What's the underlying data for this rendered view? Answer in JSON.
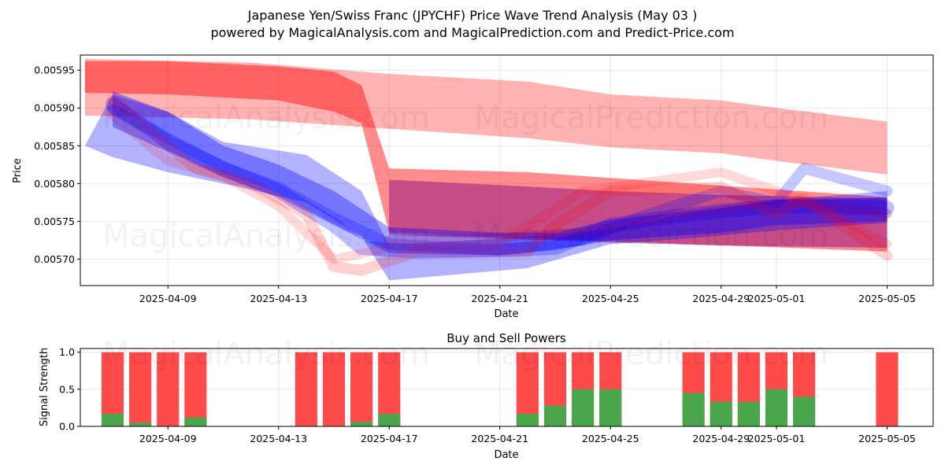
{
  "figure": {
    "title": "Japanese Yen/Swiss Franc (JPYCHF) Price Wave Trend Analysis (May 03 )",
    "subtitle": "powered by MagicalAnalysis.com and MagicalPrediction.com and Predict-Price.com",
    "watermarks": [
      "MagicalAnalysis.com",
      "MagicalPrediction.com"
    ]
  },
  "chart_data": [
    {
      "type": "area",
      "name": "price-wave",
      "xlabel": "Date",
      "ylabel": "Price",
      "x_ticks": [
        "2025-04-09",
        "2025-04-13",
        "2025-04-17",
        "2025-04-21",
        "2025-04-25",
        "2025-04-29",
        "2025-05-01",
        "2025-05-05"
      ],
      "y_ticks": [
        "0.00570",
        "0.00575",
        "0.00580",
        "0.00585",
        "0.00590",
        "0.00595"
      ],
      "xlim": [
        "2025-04-05T20:00",
        "2025-05-06T16:00"
      ],
      "ylim": [
        0.005665,
        0.00597
      ],
      "grid": true,
      "colors": {
        "red": "#ff0000",
        "blue": "#0000ff",
        "purple": "#800080"
      },
      "bands": [
        {
          "color": "red",
          "opacity": 0.3,
          "upper": [
            [
              "2025-04-06",
              0.005965
            ],
            [
              "2025-04-12",
              0.00596
            ],
            [
              "2025-04-17",
              0.005945
            ],
            [
              "2025-04-22",
              0.005935
            ],
            [
              "2025-04-25",
              0.005918
            ],
            [
              "2025-04-29",
              0.00591
            ],
            [
              "2025-05-01",
              0.0059
            ],
            [
              "2025-05-05",
              0.005882
            ]
          ],
          "lower": [
            [
              "2025-04-06",
              0.00589
            ],
            [
              "2025-04-12",
              0.005885
            ],
            [
              "2025-04-16",
              0.005875
            ],
            [
              "2025-04-22",
              0.00586
            ],
            [
              "2025-04-25",
              0.005848
            ],
            [
              "2025-04-29",
              0.00584
            ],
            [
              "2025-05-01",
              0.00583
            ],
            [
              "2025-05-05",
              0.005812
            ]
          ]
        },
        {
          "color": "red",
          "opacity": 0.45,
          "upper": [
            [
              "2025-04-06",
              0.005962
            ],
            [
              "2025-04-09",
              0.005962
            ],
            [
              "2025-04-13",
              0.005955
            ],
            [
              "2025-04-15",
              0.005948
            ],
            [
              "2025-04-16",
              0.00593
            ],
            [
              "2025-04-17",
              0.00582
            ],
            [
              "2025-04-22",
              0.005815
            ],
            [
              "2025-05-05",
              0.005782
            ]
          ],
          "lower": [
            [
              "2025-04-06",
              0.00592
            ],
            [
              "2025-04-09",
              0.005918
            ],
            [
              "2025-04-13",
              0.00591
            ],
            [
              "2025-04-15",
              0.005895
            ],
            [
              "2025-04-16",
              0.00588
            ],
            [
              "2025-04-17",
              0.005735
            ],
            [
              "2025-04-22",
              0.005728
            ],
            [
              "2025-05-05",
              0.00571
            ]
          ]
        },
        {
          "color": "purple",
          "opacity": 0.45,
          "upper": [
            [
              "2025-04-17",
              0.005805
            ],
            [
              "2025-04-21",
              0.005798
            ],
            [
              "2025-04-25",
              0.00579
            ],
            [
              "2025-04-29",
              0.005785
            ],
            [
              "2025-05-05",
              0.00578
            ]
          ],
          "lower": [
            [
              "2025-04-17",
              0.005732
            ],
            [
              "2025-04-21",
              0.005727
            ],
            [
              "2025-04-25",
              0.005722
            ],
            [
              "2025-04-29",
              0.005718
            ],
            [
              "2025-05-05",
              0.005715
            ]
          ]
        },
        {
          "color": "blue",
          "opacity": 0.3,
          "upper": [
            [
              "2025-04-06",
              0.00585
            ],
            [
              "2025-04-07",
              0.005918
            ],
            [
              "2025-04-09",
              0.005895
            ],
            [
              "2025-04-11",
              0.005855
            ],
            [
              "2025-04-14",
              0.005838
            ],
            [
              "2025-04-16",
              0.00579
            ],
            [
              "2025-04-17",
              0.005718
            ],
            [
              "2025-04-22",
              0.00573
            ],
            [
              "2025-04-25",
              0.00574
            ],
            [
              "2025-04-28",
              0.005762
            ],
            [
              "2025-05-01",
              0.005778
            ],
            [
              "2025-05-05",
              0.00579
            ]
          ],
          "lower": [
            [
              "2025-04-06",
              0.00585
            ],
            [
              "2025-04-07",
              0.005835
            ],
            [
              "2025-04-09",
              0.005815
            ],
            [
              "2025-04-11",
              0.0058
            ],
            [
              "2025-04-14",
              0.005775
            ],
            [
              "2025-04-16",
              0.00573
            ],
            [
              "2025-04-17",
              0.005672
            ],
            [
              "2025-04-22",
              0.005688
            ],
            [
              "2025-04-25",
              0.00572
            ],
            [
              "2025-04-28",
              0.005728
            ],
            [
              "2025-05-01",
              0.005738
            ],
            [
              "2025-05-05",
              0.005748
            ]
          ]
        },
        {
          "color": "blue",
          "opacity": 0.35,
          "upper": [
            [
              "2025-04-07",
              0.005922
            ],
            [
              "2025-04-09",
              0.005895
            ],
            [
              "2025-04-11",
              0.00585
            ],
            [
              "2025-04-13",
              0.005825
            ],
            [
              "2025-04-15",
              0.00579
            ],
            [
              "2025-04-17",
              0.005742
            ],
            [
              "2025-04-21",
              0.005735
            ],
            [
              "2025-04-23",
              0.005735
            ],
            [
              "2025-04-25",
              0.005752
            ],
            [
              "2025-04-29",
              0.005768
            ],
            [
              "2025-05-01",
              0.005778
            ],
            [
              "2025-05-05",
              0.005782
            ]
          ],
          "lower": [
            [
              "2025-04-07",
              0.005875
            ],
            [
              "2025-04-09",
              0.005842
            ],
            [
              "2025-04-11",
              0.005808
            ],
            [
              "2025-04-13",
              0.005782
            ],
            [
              "2025-04-15",
              0.005745
            ],
            [
              "2025-04-17",
              0.005708
            ],
            [
              "2025-04-21",
              0.005705
            ],
            [
              "2025-04-23",
              0.005712
            ],
            [
              "2025-04-25",
              0.005725
            ],
            [
              "2025-04-29",
              0.005735
            ],
            [
              "2025-05-01",
              0.005745
            ],
            [
              "2025-05-05",
              0.00575
            ]
          ]
        }
      ],
      "lines": [
        {
          "color": "blue",
          "opacity": 0.25,
          "width": 18,
          "points": [
            [
              "2025-04-07",
              0.005905
            ],
            [
              "2025-04-09",
              0.005855
            ],
            [
              "2025-04-11",
              0.00582
            ],
            [
              "2025-04-13",
              0.00579
            ],
            [
              "2025-04-15",
              0.005745
            ],
            [
              "2025-04-16",
              0.005715
            ],
            [
              "2025-04-18",
              0.00571
            ],
            [
              "2025-04-21",
              0.005712
            ],
            [
              "2025-04-23",
              0.005715
            ],
            [
              "2025-04-25",
              0.005745
            ],
            [
              "2025-04-28",
              0.00576
            ],
            [
              "2025-05-01",
              0.00577
            ],
            [
              "2025-05-05",
              0.005768
            ]
          ]
        },
        {
          "color": "blue",
          "opacity": 0.22,
          "width": 14,
          "points": [
            [
              "2025-04-07",
              0.005898
            ],
            [
              "2025-04-09",
              0.00586
            ],
            [
              "2025-04-11",
              0.005822
            ],
            [
              "2025-04-13",
              0.005795
            ],
            [
              "2025-04-15",
              0.005755
            ],
            [
              "2025-04-17",
              0.00572
            ],
            [
              "2025-04-21",
              0.005712
            ],
            [
              "2025-04-24",
              0.005725
            ],
            [
              "2025-04-26",
              0.005755
            ],
            [
              "2025-04-29",
              0.00579
            ],
            [
              "2025-05-01",
              0.005775
            ],
            [
              "2025-05-02",
              0.00582
            ],
            [
              "2025-05-05",
              0.00579
            ]
          ]
        },
        {
          "color": "red",
          "opacity": 0.18,
          "width": 14,
          "points": [
            [
              "2025-04-07",
              0.00591
            ],
            [
              "2025-04-09",
              0.00585
            ],
            [
              "2025-04-10",
              0.00582
            ],
            [
              "2025-04-12",
              0.0058
            ],
            [
              "2025-04-14",
              0.00576
            ],
            [
              "2025-04-15",
              0.00569
            ],
            [
              "2025-04-16",
              0.005685
            ],
            [
              "2025-04-18",
              0.00571
            ],
            [
              "2025-04-22",
              0.00571
            ],
            [
              "2025-04-23",
              0.005745
            ],
            [
              "2025-04-25",
              0.00579
            ],
            [
              "2025-04-29",
              0.005795
            ],
            [
              "2025-05-01",
              0.00576
            ],
            [
              "2025-05-02",
              0.00578
            ],
            [
              "2025-05-05",
              0.005705
            ]
          ]
        },
        {
          "color": "red",
          "opacity": 0.15,
          "width": 12,
          "points": [
            [
              "2025-04-07",
              0.00589
            ],
            [
              "2025-04-09",
              0.00583
            ],
            [
              "2025-04-11",
              0.00581
            ],
            [
              "2025-04-13",
              0.00577
            ],
            [
              "2025-04-15",
              0.0057
            ],
            [
              "2025-04-17",
              0.005715
            ],
            [
              "2025-04-21",
              0.00572
            ],
            [
              "2025-04-24",
              0.00579
            ],
            [
              "2025-04-27",
              0.005805
            ],
            [
              "2025-04-29",
              0.005815
            ],
            [
              "2025-05-01",
              0.00579
            ],
            [
              "2025-05-03",
              0.00576
            ],
            [
              "2025-05-05",
              0.00572
            ]
          ]
        },
        {
          "color": "purple",
          "opacity": 0.28,
          "width": 12,
          "points": [
            [
              "2025-04-17",
              0.005725
            ],
            [
              "2025-04-21",
              0.005728
            ],
            [
              "2025-04-24",
              0.005735
            ],
            [
              "2025-04-27",
              0.005755
            ],
            [
              "2025-04-30",
              0.00577
            ],
            [
              "2025-05-02",
              0.005775
            ],
            [
              "2025-05-05",
              0.00576
            ]
          ]
        }
      ]
    },
    {
      "type": "bar",
      "name": "buy-sell-powers",
      "title": "Buy and Sell Powers",
      "xlabel": "Date",
      "ylabel": "Signal Strength",
      "x_ticks": [
        "2025-04-09",
        "2025-04-13",
        "2025-04-17",
        "2025-04-21",
        "2025-04-25",
        "2025-04-29",
        "2025-05-01",
        "2025-05-05"
      ],
      "y_ticks": [
        "0.0",
        "0.5",
        "1.0"
      ],
      "ylim": [
        0,
        1.05
      ],
      "grid": true,
      "colors": {
        "buy": "#4aa64a",
        "sell": "#ff4a4a"
      },
      "categories": [
        "2025-04-07",
        "2025-04-08",
        "2025-04-09",
        "2025-04-10",
        "2025-04-14",
        "2025-04-15",
        "2025-04-16",
        "2025-04-17",
        "2025-04-22",
        "2025-04-23",
        "2025-04-24",
        "2025-04-25",
        "2025-04-28",
        "2025-04-29",
        "2025-04-30",
        "2025-05-01",
        "2025-05-02",
        "2025-05-05"
      ],
      "series": [
        {
          "values": [
            0.17,
            0.05,
            0.0,
            0.12,
            0.0,
            0.0,
            0.06,
            0.17,
            0.17,
            0.28,
            0.5,
            0.5,
            0.45,
            0.33,
            0.33,
            0.5,
            0.4,
            0.0
          ]
        },
        {
          "values": [
            1,
            1,
            1,
            1,
            1,
            1,
            1,
            1,
            1,
            1,
            1,
            1,
            1,
            1,
            1,
            1,
            1,
            1
          ]
        }
      ]
    }
  ]
}
